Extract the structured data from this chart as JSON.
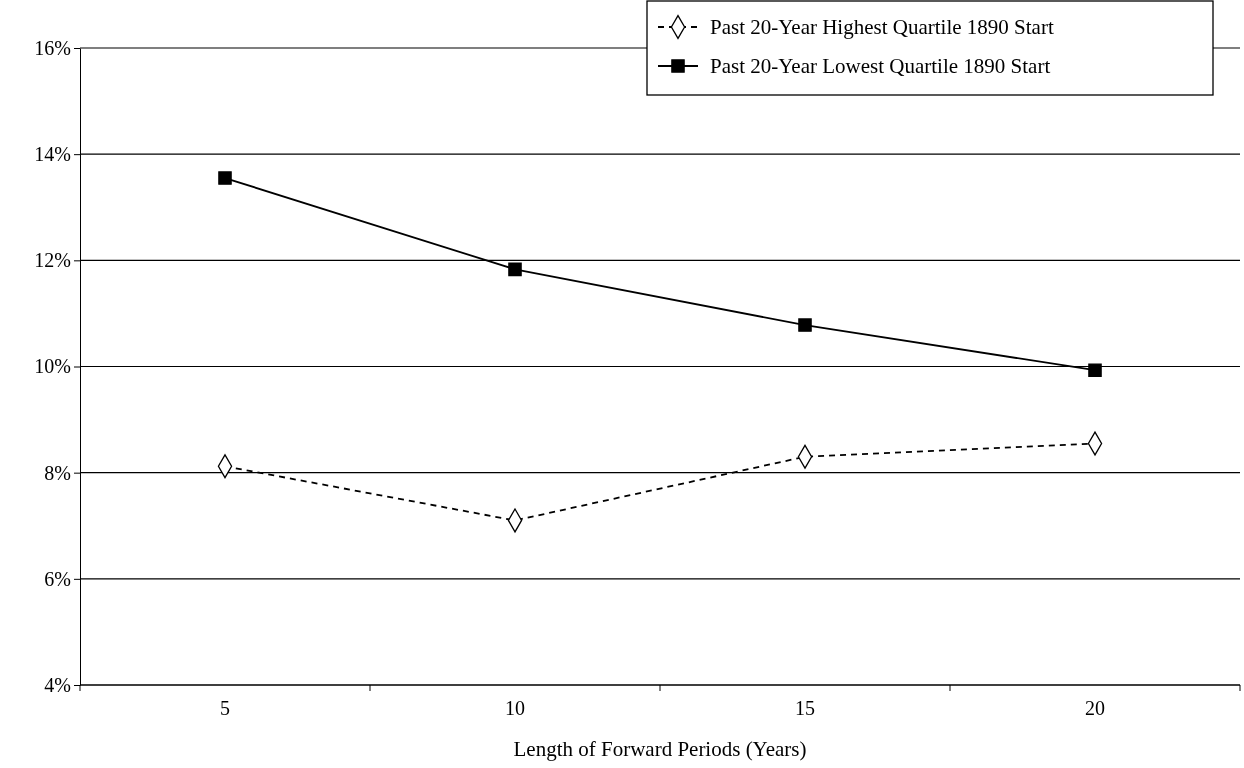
{
  "chart_data": {
    "type": "line",
    "xlabel": "Length of Forward Periods (Years)",
    "categories": [
      "5",
      "10",
      "15",
      "20"
    ],
    "series": [
      {
        "name": "Past 20-Year Highest Quartile 1890 Start",
        "color": "#000000",
        "marker": "diamond",
        "line_style": "dashed",
        "values": [
          8.12,
          7.1,
          8.3,
          8.55
        ]
      },
      {
        "name": "Past 20-Year Lowest Quartile 1890 Start",
        "color": "#000000",
        "marker": "square",
        "line_style": "solid",
        "values": [
          13.55,
          11.83,
          10.78,
          9.93
        ]
      }
    ],
    "ylim": [
      4,
      16
    ],
    "yticks": [
      {
        "value": 4,
        "label": "4%"
      },
      {
        "value": 6,
        "label": "6%"
      },
      {
        "value": 8,
        "label": "8%"
      },
      {
        "value": 10,
        "label": "10%"
      },
      {
        "value": 12,
        "label": "12%"
      },
      {
        "value": 14,
        "label": "14%"
      },
      {
        "value": 16,
        "label": "16%"
      }
    ],
    "grid": "y",
    "legend": "top right"
  }
}
